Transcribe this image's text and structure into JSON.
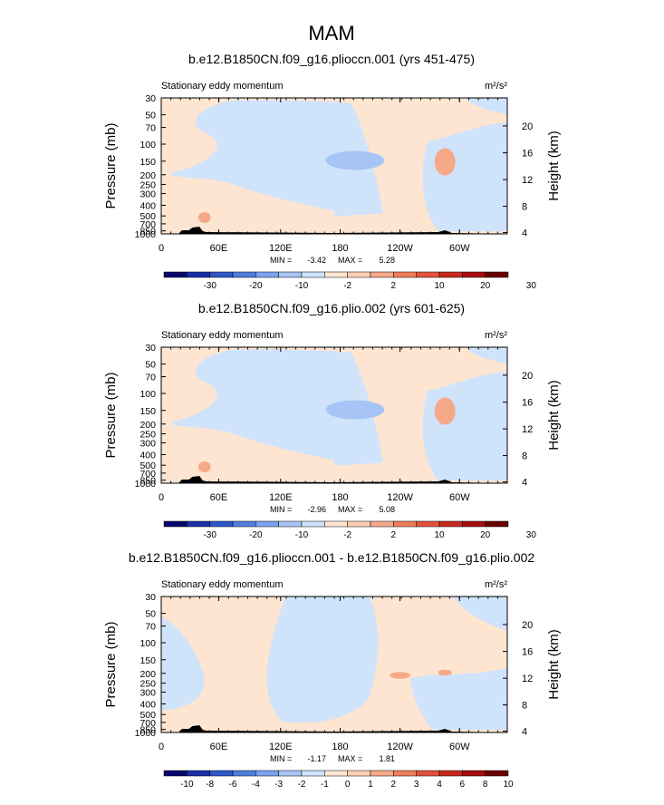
{
  "figure_title": "MAM",
  "palette": {
    "full": [
      "#08086b",
      "#1a2fa8",
      "#2f57c8",
      "#4d7ee0",
      "#7aa3ef",
      "#a6c5f6",
      "#cfe3fb",
      "#fde5d2",
      "#fbcfb2",
      "#f6a988",
      "#ef7d5b",
      "#e2533b",
      "#c72a1d",
      "#a50f0f",
      "#6b0000"
    ],
    "light_blue": "#cfe3fb",
    "mid_blue": "#a6c5f6",
    "light_peach": "#fde5d2",
    "peach": "#f6a988",
    "terrain": "#000000"
  },
  "chart_data": [
    {
      "type": "heatmap",
      "title": "b.e12.B1850CN.f09_g16.plioccn.001 (yrs 451-475)",
      "left_label": "Stationary eddy momentum",
      "units": "m²/s²",
      "ylabel": "Pressure  (mb)",
      "ylabel_right": "Height  (km)",
      "x_ticks": [
        "0",
        "60E",
        "120E",
        "180",
        "120W",
        "60W"
      ],
      "y_ticks": [
        "30",
        "50",
        "70",
        "100",
        "150",
        "200",
        "250",
        "300",
        "400",
        "500",
        "700",
        "850",
        "1000"
      ],
      "right_ticks": [
        "20",
        "16",
        "12",
        "8",
        "4"
      ],
      "min_label": "MIN =",
      "min_value": "-3.42",
      "max_label": "MAX =",
      "max_value": "5.28",
      "colorbar_labels": [
        "-30",
        "-20",
        "-10",
        "-2",
        "2",
        "10",
        "20",
        "30"
      ]
    },
    {
      "type": "heatmap",
      "title": "b.e12.B1850CN.f09_g16.plio.002 (yrs 601-625)",
      "left_label": "Stationary eddy momentum",
      "units": "m²/s²",
      "ylabel": "Pressure  (mb)",
      "ylabel_right": "Height  (km)",
      "x_ticks": [
        "0",
        "60E",
        "120E",
        "180",
        "120W",
        "60W"
      ],
      "y_ticks": [
        "30",
        "50",
        "70",
        "100",
        "150",
        "200",
        "250",
        "300",
        "400",
        "500",
        "700",
        "850",
        "1000"
      ],
      "right_ticks": [
        "20",
        "16",
        "12",
        "8",
        "4"
      ],
      "min_label": "MIN =",
      "min_value": "-2.96",
      "max_label": "MAX =",
      "max_value": "5.08",
      "colorbar_labels": [
        "-30",
        "-20",
        "-10",
        "-2",
        "2",
        "10",
        "20",
        "30"
      ]
    },
    {
      "type": "heatmap",
      "title": "b.e12.B1850CN.f09_g16.plioccn.001 - b.e12.B1850CN.f09_g16.plio.002",
      "left_label": "Stationary eddy momentum",
      "units": "m²/s²",
      "ylabel": "Pressure  (mb)",
      "ylabel_right": "Height  (km)",
      "x_ticks": [
        "0",
        "60E",
        "120E",
        "180",
        "120W",
        "60W"
      ],
      "y_ticks": [
        "30",
        "50",
        "70",
        "100",
        "150",
        "200",
        "250",
        "300",
        "400",
        "500",
        "700",
        "850",
        "1000"
      ],
      "right_ticks": [
        "20",
        "16",
        "12",
        "8",
        "4"
      ],
      "min_label": "MIN =",
      "min_value": "-1.17",
      "max_label": "MAX =",
      "max_value": "1.81",
      "colorbar_labels": [
        "-10",
        "-8",
        "-6",
        "-4",
        "-3",
        "-2",
        "-1",
        "0",
        "1",
        "2",
        "3",
        "4",
        "6",
        "8",
        "10"
      ]
    }
  ]
}
